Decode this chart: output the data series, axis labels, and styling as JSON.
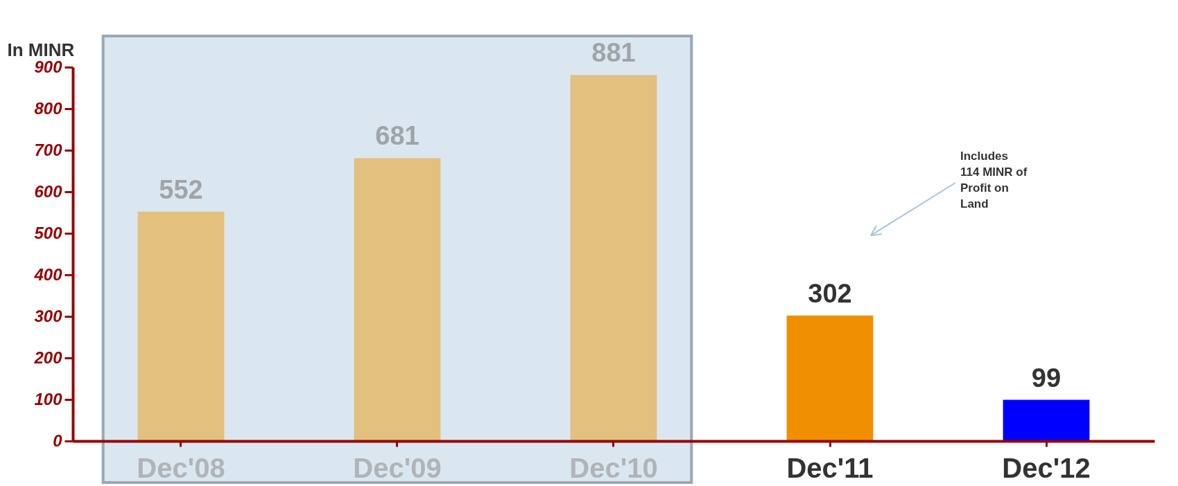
{
  "chart_data": {
    "type": "bar",
    "ylabel": "In MINR",
    "categories": [
      "Dec'08",
      "Dec'09",
      "Dec'10",
      "Dec'11",
      "Dec'12"
    ],
    "values": [
      552,
      681,
      881,
      302,
      99
    ],
    "colors": [
      "#e2c07e",
      "#e2c07e",
      "#e2c07e",
      "#f09000",
      "#0000ff"
    ],
    "ylim": [
      0,
      900
    ],
    "yticks": [
      0,
      100,
      200,
      300,
      400,
      500,
      600,
      700,
      800,
      900
    ],
    "data_labels": true,
    "grid": false,
    "legend": false,
    "bands": [
      {
        "axis": "x",
        "from": "Dec'08",
        "to": "Dec'10",
        "color": "#dbe7f0"
      }
    ],
    "annotations": [
      "Includes 114 MINR of Profit on Land"
    ]
  }
}
